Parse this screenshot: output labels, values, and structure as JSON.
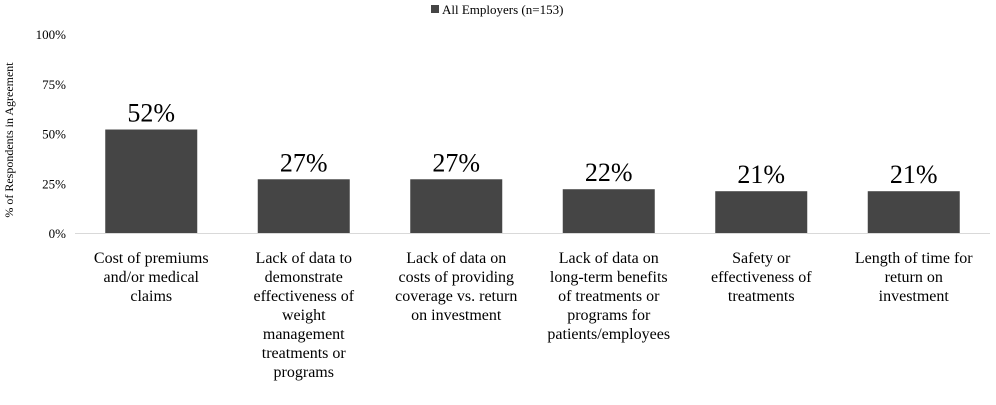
{
  "chart_data": {
    "type": "bar",
    "legend": {
      "position": "top",
      "label": "All Employers (n=153)"
    },
    "ylabel": "% of Respondents in Agreement",
    "ylim": [
      0,
      100
    ],
    "yticks": [
      "0%",
      "25%",
      "50%",
      "75%",
      "100%"
    ],
    "categories": [
      [
        "Cost of premiums",
        "and/or medical",
        "claims"
      ],
      [
        "Lack of data to",
        "demonstrate",
        "effectiveness of",
        "weight",
        "management",
        "treatments or",
        "programs"
      ],
      [
        "Lack of data on",
        "costs of providing",
        "coverage vs. return",
        "on investment"
      ],
      [
        "Lack of data on",
        "long-term benefits",
        "of treatments or",
        "programs for",
        "patients/employees"
      ],
      [
        "Safety or",
        "effectiveness of",
        "treatments"
      ],
      [
        "Length of time for",
        "return on",
        "investment"
      ]
    ],
    "series": [
      {
        "name": "All Employers (n=153)",
        "values": [
          52,
          27,
          27,
          22,
          21,
          21
        ],
        "labels": [
          "52%",
          "27%",
          "27%",
          "22%",
          "21%",
          "21%"
        ]
      }
    ],
    "colors": {
      "bar": "#454545",
      "axis": "#d9d9d9"
    }
  }
}
